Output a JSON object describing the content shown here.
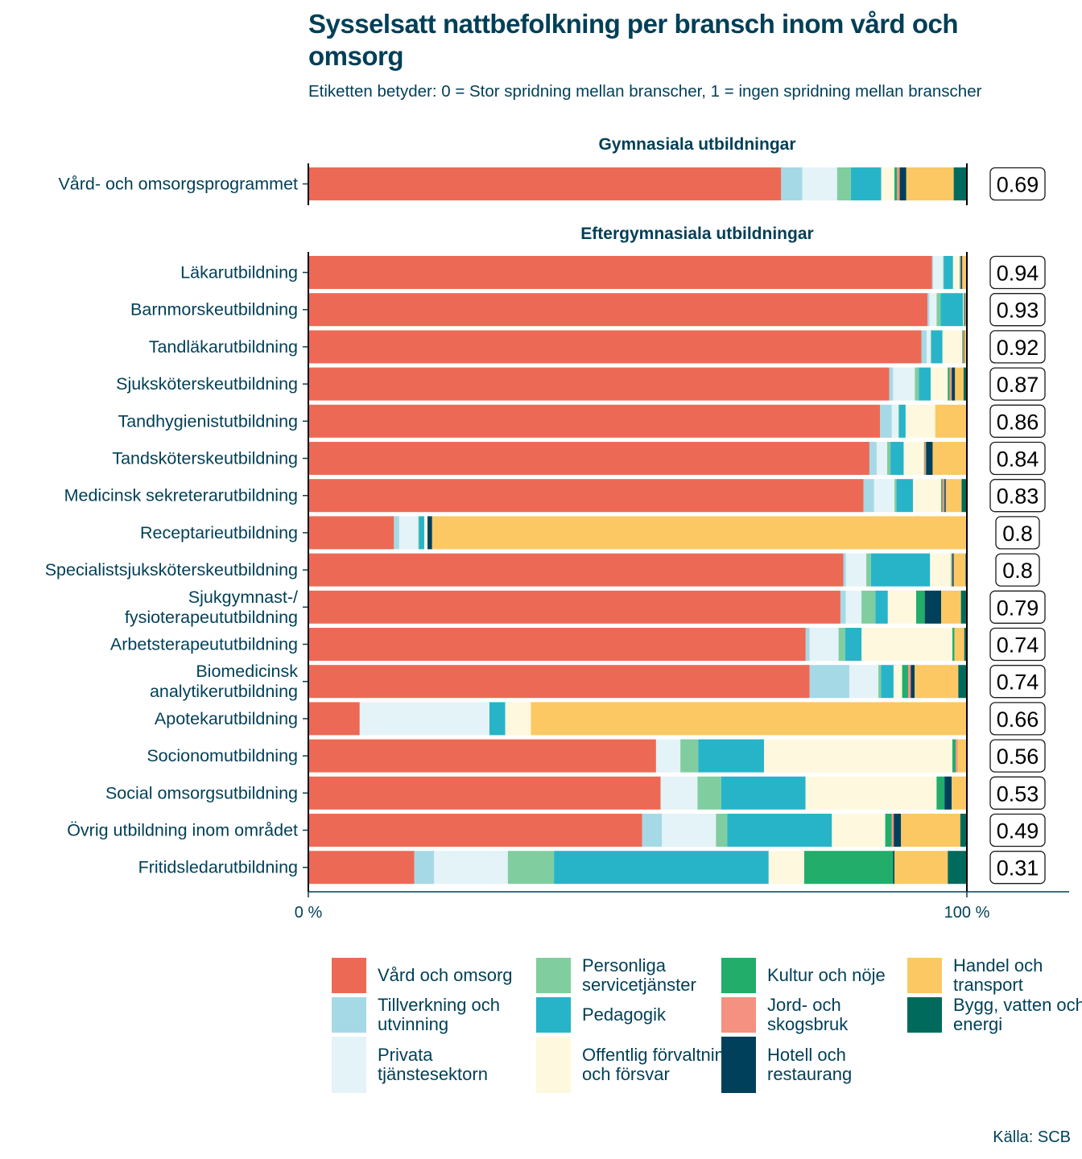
{
  "title": "Sysselsatt nattbefolkning per bransch inom vård och omsorg",
  "subtitle": "Etiketten betyder: 0 = Stor spridning mellan branscher, 1 = ingen spridning mellan branscher",
  "source": "Källa: SCB",
  "chart_data": {
    "type": "bar",
    "orientation": "horizontal-stacked-percent",
    "x_ticks": [
      "0 %",
      "100 %"
    ],
    "xlim": [
      0,
      100
    ],
    "categories_order": [
      "Vård och omsorg",
      "Tillverkning och utvinning",
      "Privata tjänstesektorn",
      "Personliga servicetjänster",
      "Pedagogik",
      "Offentlig förvaltning och försvar",
      "Kultur och nöje",
      "Jord- och skogsbruk",
      "Hotell och restaurang",
      "Handel och transport",
      "Bygg, vatten och energi"
    ],
    "colors": [
      "#ec6a55",
      "#a6d9e6",
      "#e4f3f7",
      "#80cd9f",
      "#27b4c8",
      "#fef8de",
      "#22ad6b",
      "#f49180",
      "#00405a",
      "#fcc864",
      "#006b5c"
    ],
    "legend": [
      {
        "label": "Vård och omsorg",
        "color": "#ec6a55"
      },
      {
        "label": "Tillverkning och utvinning",
        "color": "#a6d9e6"
      },
      {
        "label": "Privata tjänstesektorn",
        "color": "#e4f3f7"
      },
      {
        "label": "Personliga servicetjänster",
        "color": "#80cd9f"
      },
      {
        "label": "Pedagogik",
        "color": "#27b4c8"
      },
      {
        "label": "Offentlig förvaltning och försvar",
        "color": "#fef8de"
      },
      {
        "label": "Kultur och nöje",
        "color": "#22ad6b"
      },
      {
        "label": "Jord- och skogsbruk",
        "color": "#f49180"
      },
      {
        "label": "Hotell och restaurang",
        "color": "#00405a"
      },
      {
        "label": "Handel och transport",
        "color": "#fcc864"
      },
      {
        "label": "Bygg, vatten och energi",
        "color": "#006b5c"
      }
    ],
    "panels": [
      {
        "title": "Gymnasiala utbildningar",
        "rows": [
          {
            "label": "Vård- och omsorgsprogrammet",
            "index": "0.69",
            "values": [
              71.8,
              3.2,
              5.3,
              2.1,
              4.6,
              2.0,
              0.4,
              0.4,
              1.0,
              7.2,
              2.0
            ]
          }
        ]
      },
      {
        "title": "Eftergymnasiala utbildningar",
        "rows": [
          {
            "label": "Läkarutbildning",
            "index": "0.94",
            "values": [
              94.7,
              0.2,
              1.5,
              0.1,
              1.4,
              1.0,
              0.1,
              0.1,
              0.2,
              0.6,
              0.1
            ]
          },
          {
            "label": "Barnmorskeutbildning",
            "index": "0.93",
            "values": [
              94.1,
              0.3,
              1.1,
              0.6,
              3.4,
              0.1,
              0.1,
              0.1,
              0.1,
              0.1,
              0.1
            ]
          },
          {
            "label": "Tandläkarutbildning",
            "index": "0.92",
            "values": [
              93.1,
              0.8,
              0.6,
              0.1,
              1.7,
              3.0,
              0.1,
              0.1,
              0.1,
              0.4,
              0.0
            ]
          },
          {
            "label": "Sjuksköterskeutbildning",
            "index": "0.87",
            "values": [
              88.2,
              0.6,
              3.3,
              0.6,
              1.8,
              2.6,
              0.3,
              0.3,
              0.5,
              1.3,
              0.5
            ]
          },
          {
            "label": "Tandhygienistutbildning",
            "index": "0.86",
            "values": [
              86.8,
              1.8,
              1.0,
              0.1,
              1.0,
              4.5,
              0.0,
              0.0,
              0.0,
              4.8,
              0.0
            ]
          },
          {
            "label": "Tandsköterskeutbildning",
            "index": "0.84",
            "values": [
              85.2,
              1.1,
              1.6,
              0.5,
              2.0,
              3.1,
              0.1,
              0.2,
              1.0,
              5.2,
              0.0
            ]
          },
          {
            "label": "Medicinsk sekreterarutbildning",
            "index": "0.83",
            "values": [
              84.4,
              1.6,
              3.1,
              0.3,
              2.5,
              4.3,
              0.2,
              0.3,
              0.2,
              2.4,
              0.8
            ]
          },
          {
            "label": "Receptarieutbildning",
            "index": "0.8",
            "values": [
              13.0,
              0.8,
              2.9,
              0.1,
              0.8,
              0.5,
              0.0,
              0.0,
              0.7,
              81.2,
              0.0
            ]
          },
          {
            "label": "Specialistsjuksköterskeutbildning",
            "index": "0.8",
            "values": [
              81.4,
              0.4,
              3.1,
              0.7,
              9.0,
              3.2,
              0.1,
              0.1,
              0.2,
              1.8,
              0.2
            ]
          },
          {
            "label": "Sjukgymnast-/\nfysioterapeututbildning",
            "index": "0.79",
            "values": [
              80.8,
              0.8,
              2.4,
              2.1,
              1.9,
              4.3,
              1.3,
              0.0,
              2.5,
              3.0,
              0.9
            ]
          },
          {
            "label": "Arbetsterapeututbildning",
            "index": "0.74",
            "values": [
              75.6,
              0.6,
              4.4,
              1.0,
              2.5,
              13.8,
              0.3,
              0.0,
              0.0,
              1.5,
              0.4
            ]
          },
          {
            "label": "Biomedicinsk\nanalytikerutbildning",
            "index": "0.74",
            "values": [
              75.9,
              6.0,
              4.4,
              0.4,
              1.9,
              1.3,
              0.9,
              0.4,
              0.6,
              6.6,
              1.3
            ]
          },
          {
            "label": "Apotekarutbildning",
            "index": "0.66",
            "values": [
              7.8,
              0.0,
              19.7,
              0.0,
              2.4,
              3.9,
              0.0,
              0.0,
              0.0,
              66.2,
              0.0
            ]
          },
          {
            "label": "Socionomutbildning",
            "index": "0.56",
            "values": [
              52.8,
              0.0,
              3.7,
              2.7,
              10.0,
              28.6,
              0.5,
              0.3,
              0.0,
              1.3,
              0.1
            ]
          },
          {
            "label": "Social omsorgsutbildning",
            "index": "0.53",
            "values": [
              53.5,
              0.0,
              5.6,
              3.6,
              12.8,
              19.9,
              1.2,
              0.0,
              1.1,
              2.3,
              0.0
            ]
          },
          {
            "label": "Övrig utbildning inom området",
            "index": "0.49",
            "values": [
              50.7,
              3.0,
              8.2,
              1.7,
              15.9,
              8.1,
              1.0,
              0.3,
              1.1,
              9.0,
              1.0
            ]
          },
          {
            "label": "Fritidsledarutbildning",
            "index": "0.31",
            "values": [
              16.1,
              3.0,
              11.2,
              7.0,
              32.6,
              5.4,
              13.5,
              0.0,
              0.2,
              8.1,
              2.9
            ]
          }
        ]
      }
    ],
    "grid": false,
    "legend_placement": "bottom"
  }
}
